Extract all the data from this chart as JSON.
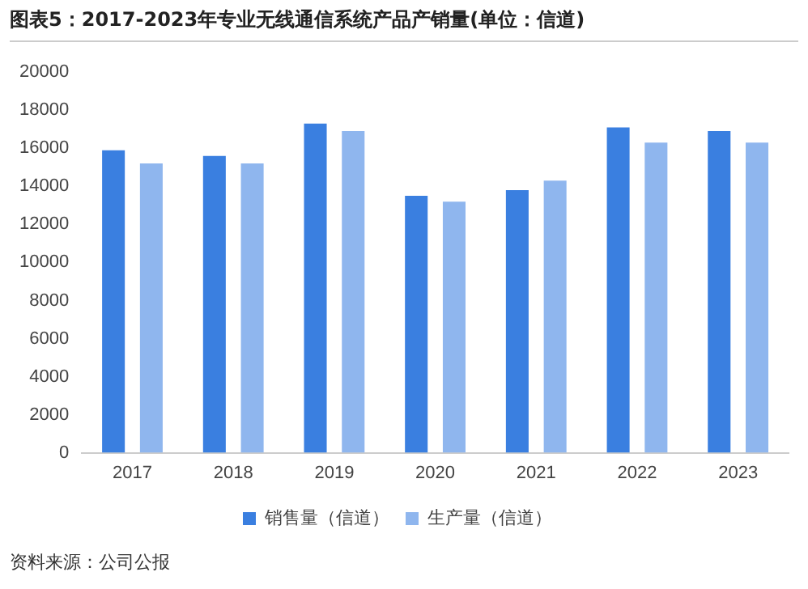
{
  "chart_data": {
    "type": "bar",
    "title": "图表5：2017-2023年专业无线通信系统产品产销量(单位：信道)",
    "categories": [
      "2017",
      "2018",
      "2019",
      "2020",
      "2021",
      "2022",
      "2023"
    ],
    "series": [
      {
        "name": "销售量（信道）",
        "color": "#3a7fe0",
        "values": [
          15900,
          15600,
          17300,
          13500,
          13800,
          17100,
          16900
        ]
      },
      {
        "name": "生产量（信道）",
        "color": "#8fb6ee",
        "values": [
          15200,
          15200,
          16900,
          13200,
          14300,
          16300,
          16300
        ]
      }
    ],
    "ylim": [
      0,
      20000
    ],
    "yticks": [
      0,
      2000,
      4000,
      6000,
      8000,
      10000,
      12000,
      14000,
      16000,
      18000,
      20000
    ],
    "grid": false,
    "legend": "bottom",
    "annotations": [
      "资料来源：公司公报"
    ]
  }
}
